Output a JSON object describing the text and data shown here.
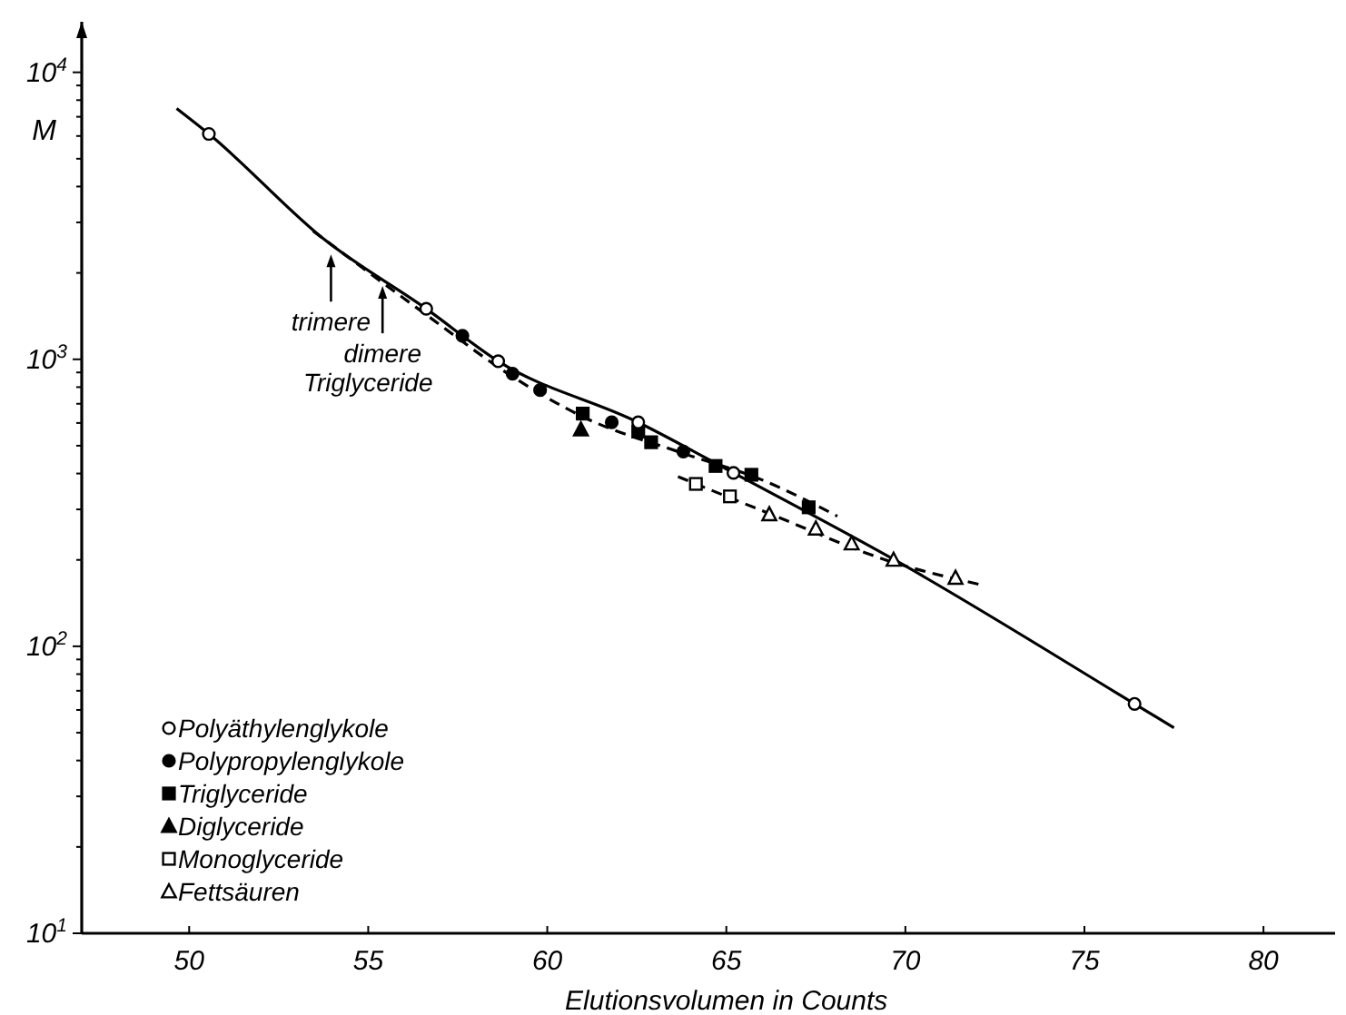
{
  "chart_data": {
    "type": "scatter",
    "xlabel": "Elutionsvolumen in Counts",
    "ylabel": "M",
    "log": "y",
    "xlim": [
      47,
      82
    ],
    "ylim": [
      10,
      15000
    ],
    "xticks": [
      50,
      55,
      60,
      65,
      70,
      75,
      80
    ],
    "yticks": [
      {
        "value": 10,
        "label": "10$^{1}$"
      },
      {
        "value": 20,
        "label": null
      },
      {
        "value": 30,
        "label": null
      },
      {
        "value": 40,
        "label": null
      },
      {
        "value": 50,
        "label": null
      },
      {
        "value": 60,
        "label": null
      },
      {
        "value": 70,
        "label": null
      },
      {
        "value": 80,
        "label": null
      },
      {
        "value": 90,
        "label": null
      },
      {
        "value": 100,
        "label": "10$^{2}$"
      },
      {
        "value": 200,
        "label": null
      },
      {
        "value": 300,
        "label": null
      },
      {
        "value": 400,
        "label": null
      },
      {
        "value": 500,
        "label": null
      },
      {
        "value": 600,
        "label": null
      },
      {
        "value": 700,
        "label": null
      },
      {
        "value": 800,
        "label": null
      },
      {
        "value": 900,
        "label": null
      },
      {
        "value": 1000,
        "label": "10$^{3}$"
      },
      {
        "value": 2000,
        "label": null
      },
      {
        "value": 3000,
        "label": null
      },
      {
        "value": 4000,
        "label": null
      },
      {
        "value": 5000,
        "label": null
      },
      {
        "value": 6000,
        "label": null
      },
      {
        "value": 7000,
        "label": null
      },
      {
        "value": 8000,
        "label": null
      },
      {
        "value": 9000,
        "label": null
      },
      {
        "value": 10000,
        "label": "10$^{4}$"
      }
    ],
    "grid": false,
    "legend": "bottom left",
    "series": [
      {
        "name": "Polyäthylenglykole",
        "marker": "circle-open",
        "color": "#000000",
        "x": [
          50.55,
          56.62,
          58.63,
          62.54,
          65.2,
          76.4
        ],
        "values": [
          6100,
          1500,
          985,
          603,
          402,
          63
        ]
      },
      {
        "name": "Polypropylenglykole",
        "marker": "circle",
        "color": "#000000",
        "x": [
          57.63,
          59.03,
          59.8,
          61.8,
          63.8
        ],
        "values": [
          1208,
          891,
          781,
          603,
          477
        ]
      },
      {
        "name": "Triglyceride",
        "marker": "square",
        "color": "#000000",
        "x": [
          60.99,
          62.54,
          62.9,
          64.7,
          65.7,
          67.3
        ],
        "values": [
          647,
          560,
          514,
          425,
          396,
          305
        ]
      },
      {
        "name": "Diglyceride",
        "marker": "triangle",
        "color": "#000000",
        "x": [
          60.94
        ],
        "values": [
          569
        ]
      },
      {
        "name": "Monoglyceride",
        "marker": "square-open",
        "color": "#000000",
        "x": [
          64.15,
          65.1
        ],
        "values": [
          368,
          333
        ]
      },
      {
        "name": "Fettsäuren",
        "marker": "triangle-open",
        "color": "#000000",
        "x": [
          66.2,
          67.5,
          68.5,
          69.67,
          71.4
        ],
        "values": [
          288,
          257,
          228,
          200,
          173
        ]
      },
      {
        "type": "line",
        "line_style": "solid",
        "color": "#000000",
        "x": [
          49.65,
          50.55,
          53.8,
          56.62,
          58.63,
          62.54,
          65.2,
          69.7,
          76.4,
          77.5
        ],
        "values": [
          7480,
          6100,
          2600,
          1500,
          985,
          603,
          402,
          200,
          63,
          52
        ]
      },
      {
        "type": "line",
        "line_style": "dashed",
        "color": "#000000",
        "x": [
          53.46,
          56.62,
          59.03,
          61.0,
          63.8,
          66.0,
          68.1
        ],
        "values": [
          2800,
          1430,
          870,
          630,
          470,
          380,
          284
        ]
      },
      {
        "type": "line",
        "line_style": "dashed",
        "color": "#000000",
        "x": [
          63.65,
          66.2,
          69.67,
          72.1
        ],
        "values": [
          390,
          290,
          196,
          164
        ]
      }
    ],
    "annotations": [
      {
        "text": "trimere",
        "x": 53.96,
        "y": 2320
      },
      {
        "text": "dimere\nTriglyceride",
        "x": 55.4,
        "y": 1800
      }
    ]
  }
}
